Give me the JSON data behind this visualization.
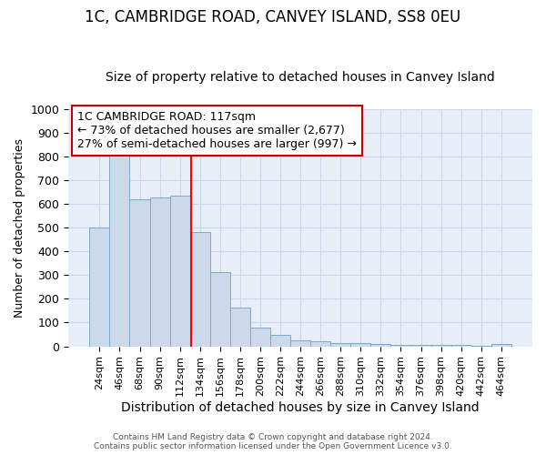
{
  "title": "1C, CAMBRIDGE ROAD, CANVEY ISLAND, SS8 0EU",
  "subtitle": "Size of property relative to detached houses in Canvey Island",
  "xlabel": "Distribution of detached houses by size in Canvey Island",
  "ylabel": "Number of detached properties",
  "bar_labels": [
    "24sqm",
    "46sqm",
    "68sqm",
    "90sqm",
    "112sqm",
    "134sqm",
    "156sqm",
    "178sqm",
    "200sqm",
    "222sqm",
    "244sqm",
    "266sqm",
    "288sqm",
    "310sqm",
    "332sqm",
    "354sqm",
    "376sqm",
    "398sqm",
    "420sqm",
    "442sqm",
    "464sqm"
  ],
  "bar_values": [
    500,
    810,
    620,
    625,
    635,
    480,
    312,
    162,
    80,
    47,
    27,
    22,
    15,
    13,
    10,
    8,
    7,
    6,
    5,
    4,
    10
  ],
  "bar_color": "#ccd9ea",
  "bar_edgecolor": "#7aaac8",
  "bar_linewidth": 0.7,
  "red_line_x": 4.55,
  "ylim": [
    0,
    1000
  ],
  "yticks": [
    0,
    100,
    200,
    300,
    400,
    500,
    600,
    700,
    800,
    900,
    1000
  ],
  "annotation_text": "1C CAMBRIDGE ROAD: 117sqm\n← 73% of detached houses are smaller (2,677)\n27% of semi-detached houses are larger (997) →",
  "annotation_box_color": "#ffffff",
  "annotation_box_edgecolor": "#cc0000",
  "grid_color": "#ccd6e8",
  "background_color": "#e8eef8",
  "footer_line1": "Contains HM Land Registry data © Crown copyright and database right 2024.",
  "footer_line2": "Contains public sector information licensed under the Open Government Licence v3.0.",
  "title_fontsize": 12,
  "subtitle_fontsize": 10,
  "xlabel_fontsize": 10,
  "ylabel_fontsize": 9
}
